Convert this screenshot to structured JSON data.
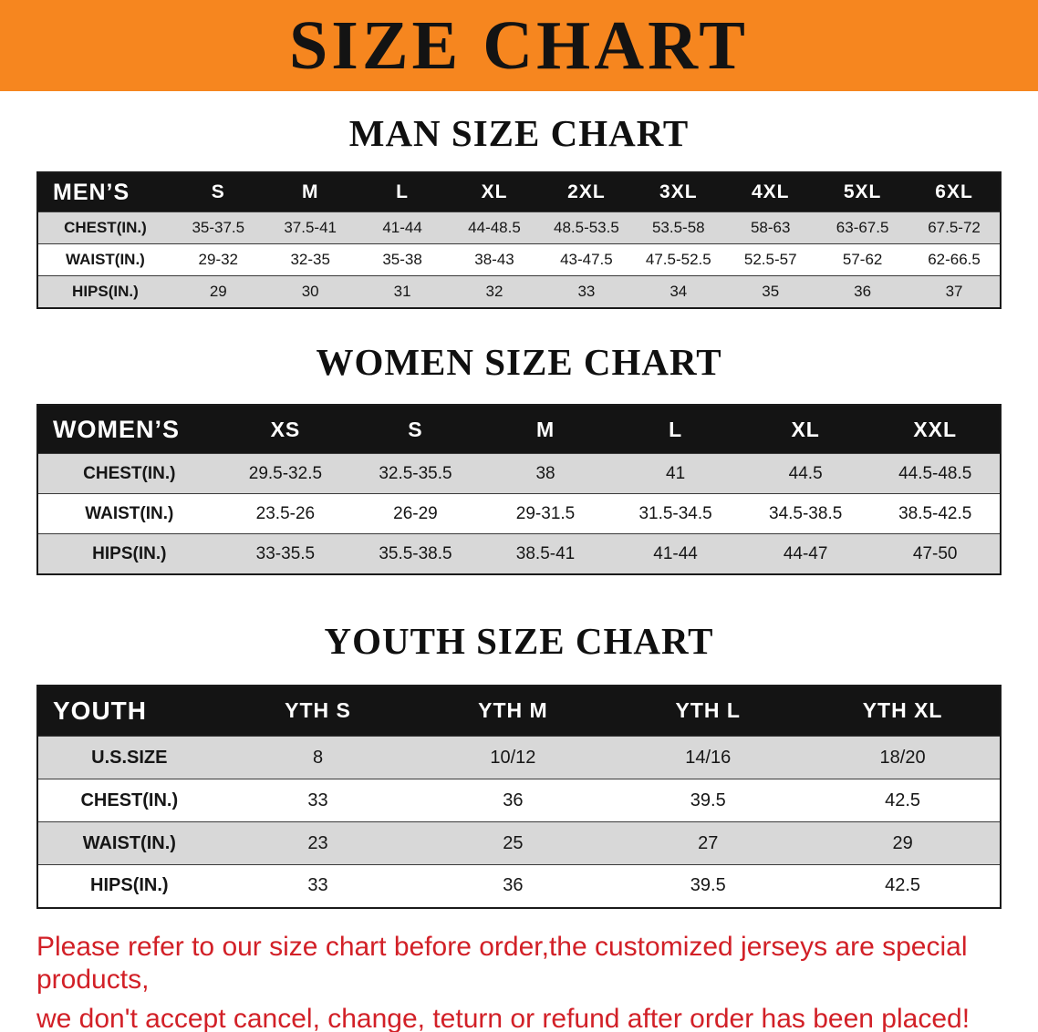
{
  "banner": {
    "title": "SIZE CHART",
    "bg_color": "#F6861F"
  },
  "sections": [
    {
      "id": "men",
      "heading": "MAN SIZE CHART",
      "table": {
        "header": [
          "MEN’S",
          "S",
          "M",
          "L",
          "XL",
          "2XL",
          "3XL",
          "4XL",
          "5XL",
          "6XL"
        ],
        "rows": [
          [
            "CHEST(IN.)",
            "35-37.5",
            "37.5-41",
            "41-44",
            "44-48.5",
            "48.5-53.5",
            "53.5-58",
            "58-63",
            "63-67.5",
            "67.5-72"
          ],
          [
            "WAIST(IN.)",
            "29-32",
            "32-35",
            "35-38",
            "38-43",
            "43-47.5",
            "47.5-52.5",
            "52.5-57",
            "57-62",
            "62-66.5"
          ],
          [
            "HIPS(IN.)",
            "29",
            "30",
            "31",
            "32",
            "33",
            "34",
            "35",
            "36",
            "37"
          ]
        ]
      }
    },
    {
      "id": "women",
      "heading": "WOMEN SIZE CHART",
      "table": {
        "header": [
          "WOMEN’S",
          "XS",
          "S",
          "M",
          "L",
          "XL",
          "XXL"
        ],
        "rows": [
          [
            "CHEST(IN.)",
            "29.5-32.5",
            "32.5-35.5",
            "38",
            "41",
            "44.5",
            "44.5-48.5"
          ],
          [
            "WAIST(IN.)",
            "23.5-26",
            "26-29",
            "29-31.5",
            "31.5-34.5",
            "34.5-38.5",
            "38.5-42.5"
          ],
          [
            "HIPS(IN.)",
            "33-35.5",
            "35.5-38.5",
            "38.5-41",
            "41-44",
            "44-47",
            "47-50"
          ]
        ]
      }
    },
    {
      "id": "youth",
      "heading": "YOUTH SIZE CHART",
      "table": {
        "header": [
          "YOUTH",
          "YTH S",
          "YTH M",
          "YTH L",
          "YTH XL"
        ],
        "rows": [
          [
            "U.S.SIZE",
            "8",
            "10/12",
            "14/16",
            "18/20"
          ],
          [
            "CHEST(IN.)",
            "33",
            "36",
            "39.5",
            "42.5"
          ],
          [
            "WAIST(IN.)",
            "23",
            "25",
            "27",
            "29"
          ],
          [
            "HIPS(IN.)",
            "33",
            "36",
            "39.5",
            "42.5"
          ]
        ]
      }
    }
  ],
  "disclaimer": {
    "text_color": "#D22027",
    "lines": [
      "Please refer to our size chart before order,the customized jerseys are special products,",
      "we don't accept cancel, change, teturn or refund after order has been placed!"
    ]
  }
}
